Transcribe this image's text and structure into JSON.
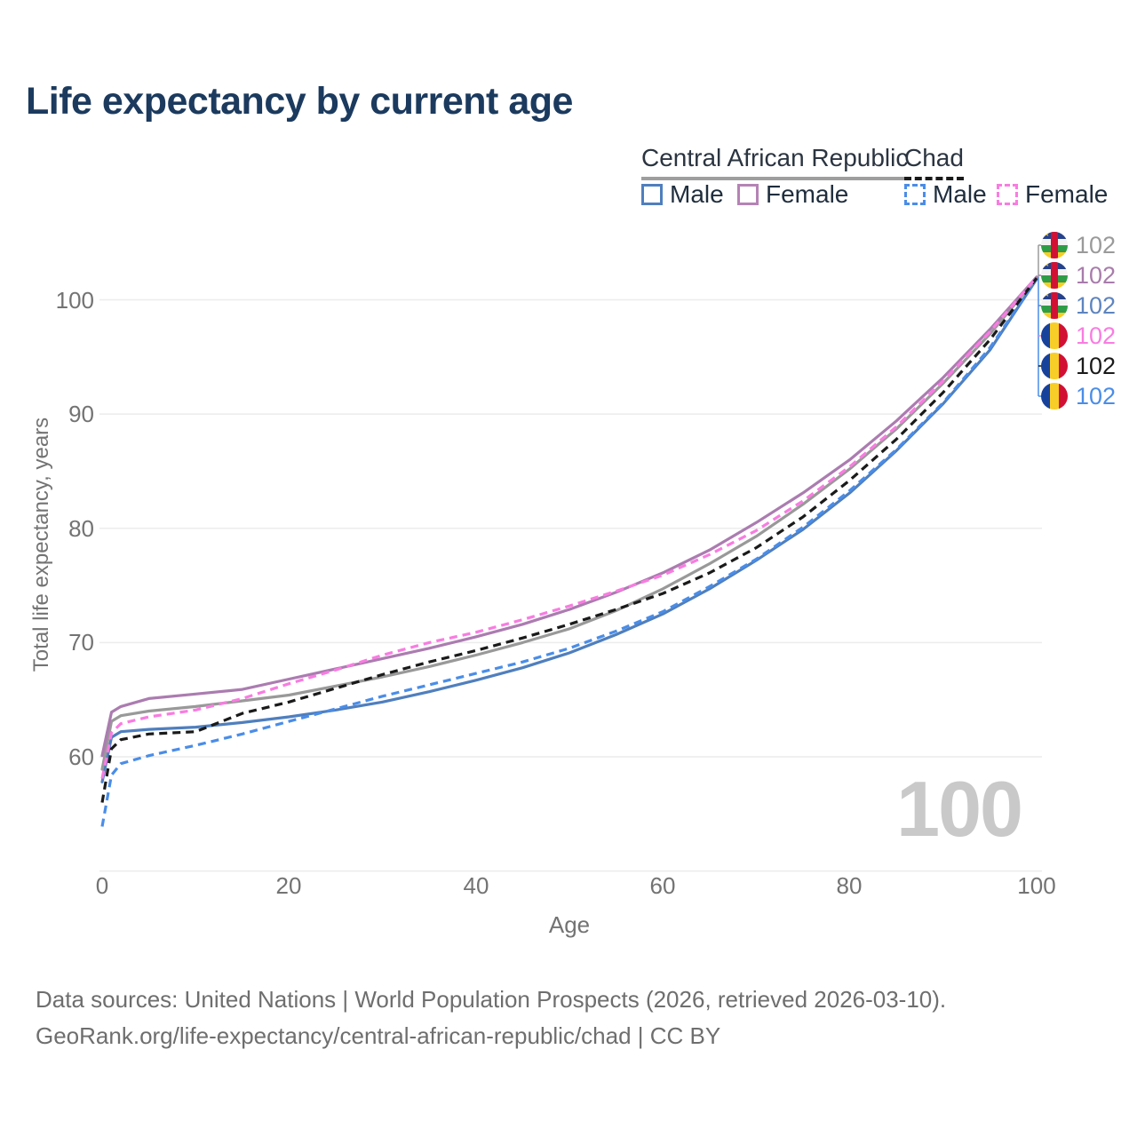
{
  "title": "Life expectancy by current age",
  "legend": {
    "groups": [
      {
        "label": "Central African Republic",
        "line_style": "solid",
        "line_color": "#9e9e9e",
        "entries": [
          {
            "label": "Male",
            "style": "solid",
            "color": "#4f7fbe"
          },
          {
            "label": "Female",
            "style": "solid",
            "color": "#b583b5"
          }
        ]
      },
      {
        "label": "Chad",
        "line_style": "dashed",
        "line_color": "#1a1a1a",
        "entries": [
          {
            "label": "Male",
            "style": "dashed",
            "color": "#4a8de8"
          },
          {
            "label": "Female",
            "style": "dashed",
            "color": "#f97ce1"
          }
        ]
      }
    ]
  },
  "chart_data": {
    "type": "line",
    "title": "Life expectancy by current age",
    "xlabel": "Age",
    "ylabel": "Total life expectancy, years",
    "xlim": [
      0,
      100
    ],
    "ylim_shown": [
      60,
      100
    ],
    "xticks": [
      0,
      20,
      40,
      60,
      80,
      100
    ],
    "yticks": [
      100,
      90,
      80,
      70,
      60
    ],
    "grid": "horizontal",
    "legend_position": "top-right",
    "age_counter": "100",
    "ages": [
      0,
      1,
      2,
      5,
      10,
      15,
      20,
      25,
      30,
      35,
      40,
      45,
      50,
      55,
      60,
      65,
      70,
      75,
      80,
      85,
      90,
      95,
      100
    ],
    "series": [
      {
        "name": "Central African Republic — Male",
        "country": "Central African Republic",
        "sex": "male",
        "style": "solid",
        "color": "#4f7fbe",
        "end_label": "102",
        "values": [
          57.8,
          61.7,
          62.2,
          62.4,
          62.6,
          63.0,
          63.5,
          64.1,
          64.8,
          65.7,
          66.7,
          67.8,
          69.1,
          70.7,
          72.5,
          74.7,
          77.2,
          79.9,
          83.1,
          86.8,
          90.9,
          95.6,
          101.8
        ]
      },
      {
        "name": "Central African Republic — Both sexes",
        "country": "Central African Republic",
        "sex": "total",
        "style": "solid",
        "color": "#999999",
        "end_label": "102",
        "values": [
          58.9,
          63.1,
          63.6,
          64.0,
          64.4,
          64.9,
          65.4,
          66.2,
          67.0,
          67.9,
          68.9,
          70.0,
          71.2,
          72.8,
          74.7,
          76.9,
          79.3,
          82.1,
          85.2,
          88.7,
          92.7,
          97.0,
          101.9
        ]
      },
      {
        "name": "Central African Republic — Female",
        "country": "Central African Republic",
        "sex": "female",
        "style": "solid",
        "color": "#ab7cb0",
        "end_label": "102",
        "values": [
          60.1,
          63.9,
          64.4,
          65.1,
          65.5,
          65.9,
          66.8,
          67.7,
          68.6,
          69.5,
          70.5,
          71.6,
          72.9,
          74.4,
          76.1,
          78.1,
          80.5,
          83.1,
          86.0,
          89.4,
          93.2,
          97.4,
          102.0
        ]
      },
      {
        "name": "Chad — Male",
        "country": "Chad",
        "sex": "male",
        "style": "dashed",
        "color": "#4a8de8",
        "end_label": "102",
        "values": [
          53.9,
          58.4,
          59.4,
          60.1,
          61.0,
          62.0,
          63.1,
          64.2,
          65.3,
          66.3,
          67.3,
          68.3,
          69.5,
          71.0,
          72.7,
          74.9,
          77.3,
          80.1,
          83.3,
          86.9,
          91.0,
          95.8,
          101.8
        ]
      },
      {
        "name": "Chad — Both sexes",
        "country": "Chad",
        "sex": "total",
        "style": "dashed",
        "color": "#1a1a1a",
        "end_label": "102",
        "values": [
          56.0,
          60.7,
          61.5,
          62.0,
          62.2,
          63.8,
          64.8,
          66.0,
          67.2,
          68.3,
          69.3,
          70.4,
          71.6,
          72.9,
          74.3,
          76.1,
          78.3,
          81.0,
          84.2,
          87.8,
          91.9,
          96.5,
          101.9
        ]
      },
      {
        "name": "Chad — Female",
        "country": "Chad",
        "sex": "female",
        "style": "dashed",
        "color": "#f97ce1",
        "end_label": "102",
        "values": [
          58.1,
          62.1,
          62.9,
          63.5,
          64.1,
          65.1,
          66.4,
          67.6,
          68.9,
          70.0,
          70.9,
          72.0,
          73.2,
          74.5,
          75.9,
          77.7,
          79.8,
          82.4,
          85.4,
          88.9,
          92.9,
          97.2,
          102.0
        ]
      }
    ]
  },
  "end_labels": [
    {
      "country": "Central African Republic",
      "icon": "central-african-republic-flag",
      "value": "102",
      "color": "#9a9a9a"
    },
    {
      "country": "Central African Republic",
      "icon": "central-african-republic-flag",
      "value": "102",
      "color": "#a87cab"
    },
    {
      "country": "Central African Republic",
      "icon": "central-african-republic-flag",
      "value": "102",
      "color": "#5d84bf"
    },
    {
      "country": "Chad",
      "icon": "chad-flag",
      "value": "102",
      "color": "#f97ce1"
    },
    {
      "country": "Chad",
      "icon": "chad-flag",
      "value": "102",
      "color": "#1a1a1a"
    },
    {
      "country": "Chad",
      "icon": "chad-flag",
      "value": "102",
      "color": "#4a8de8"
    }
  ],
  "footer": {
    "line1": "Data sources: United Nations | World Population Prospects (2026, retrieved 2026-03-10).",
    "line2": "GeoRank.org/life-expectancy/central-african-republic/chad | CC BY"
  }
}
